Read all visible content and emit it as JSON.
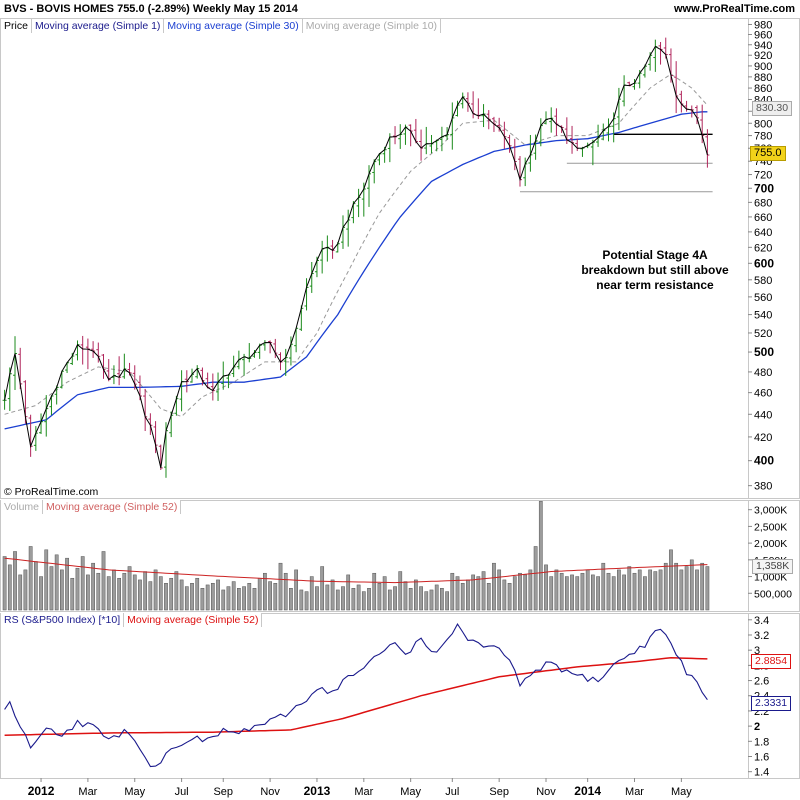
{
  "header": {
    "ticker_line": "BVS - BOVIS HOMES     755.0 (-2.89%)     Weekly  May 15 2014",
    "site": "www.ProRealTime.com"
  },
  "copyright": "© ProRealTime.com",
  "annotation": [
    "Potential Stage 4A",
    "breakdown but still above",
    "near term resistance"
  ],
  "colors": {
    "up_bar": "#1a8a1a",
    "down_bar": "#b0245a",
    "ma1": "#000000",
    "ma30": "#1b3fd1",
    "ma10": "#999999",
    "volume_bar": "#9c9c9c",
    "vol_ma": "#cc2222",
    "rs_line": "#1a1a8c",
    "rs_ma": "#dd1111",
    "last_price_badge": "#f2d21a"
  },
  "chart_data": [
    {
      "type": "ohlc",
      "panel": "price",
      "legend": [
        "Price",
        "Moving average (Simple 1)",
        "Moving average (Simple 30)",
        "Moving average (Simple 10)"
      ],
      "yticks": [
        380,
        400,
        420,
        440,
        460,
        480,
        500,
        520,
        540,
        560,
        580,
        600,
        620,
        640,
        660,
        680,
        700,
        720,
        740,
        760,
        780,
        800,
        820,
        840,
        860,
        880,
        900,
        920,
        940,
        960,
        980
      ],
      "ytick_labels": [
        "380",
        "400",
        "420",
        "440",
        "460",
        "480",
        "500",
        "520",
        "540",
        "560",
        "580",
        "600",
        "620",
        "640",
        "660",
        "680",
        "700",
        "720",
        "740",
        "760",
        "780",
        "800",
        "820",
        "840",
        "860",
        "880",
        "900",
        "920",
        "940",
        "960",
        "980"
      ],
      "yticks_bold": [
        400,
        500,
        600,
        700
      ],
      "scale": "log",
      "ylim": [
        372,
        985
      ],
      "last_price": "755.0",
      "ma10_last": "830.30",
      "close_anchors": [
        [
          0,
          455
        ],
        [
          2,
          498
        ],
        [
          5,
          410
        ],
        [
          8,
          445
        ],
        [
          11,
          480
        ],
        [
          14,
          505
        ],
        [
          17,
          503
        ],
        [
          20,
          470
        ],
        [
          23,
          482
        ],
        [
          25,
          470
        ],
        [
          27,
          440
        ],
        [
          29,
          415
        ],
        [
          30,
          395
        ],
        [
          31,
          425
        ],
        [
          34,
          470
        ],
        [
          37,
          480
        ],
        [
          40,
          460
        ],
        [
          42,
          475
        ],
        [
          45,
          490
        ],
        [
          48,
          500
        ],
        [
          51,
          510
        ],
        [
          53,
          490
        ],
        [
          55,
          505
        ],
        [
          58,
          570
        ],
        [
          61,
          620
        ],
        [
          63,
          612
        ],
        [
          66,
          660
        ],
        [
          69,
          700
        ],
        [
          71,
          740
        ],
        [
          74,
          775
        ],
        [
          77,
          790
        ],
        [
          80,
          765
        ],
        [
          83,
          770
        ],
        [
          85,
          780
        ],
        [
          87,
          835
        ],
        [
          88,
          845
        ],
        [
          90,
          820
        ],
        [
          93,
          805
        ],
        [
          96,
          780
        ],
        [
          98,
          740
        ],
        [
          99,
          715
        ],
        [
          101,
          755
        ],
        [
          104,
          810
        ],
        [
          107,
          790
        ],
        [
          110,
          755
        ],
        [
          113,
          768
        ],
        [
          116,
          790
        ],
        [
          119,
          860
        ],
        [
          122,
          880
        ],
        [
          125,
          935
        ],
        [
          127,
          920
        ],
        [
          129,
          850
        ],
        [
          131,
          825
        ],
        [
          133,
          810
        ],
        [
          135,
          755
        ]
      ],
      "ma30_anchors": [
        [
          0,
          427
        ],
        [
          8,
          435
        ],
        [
          14,
          458
        ],
        [
          20,
          465
        ],
        [
          26,
          465
        ],
        [
          34,
          466
        ],
        [
          40,
          470
        ],
        [
          46,
          470
        ],
        [
          53,
          475
        ],
        [
          58,
          495
        ],
        [
          64,
          540
        ],
        [
          70,
          600
        ],
        [
          76,
          660
        ],
        [
          82,
          710
        ],
        [
          88,
          735
        ],
        [
          94,
          755
        ],
        [
          100,
          765
        ],
        [
          106,
          772
        ],
        [
          112,
          775
        ],
        [
          118,
          785
        ],
        [
          124,
          800
        ],
        [
          130,
          815
        ],
        [
          134,
          819
        ]
      ],
      "ma10_anchors": [
        [
          0,
          440
        ],
        [
          6,
          448
        ],
        [
          12,
          470
        ],
        [
          18,
          485
        ],
        [
          24,
          480
        ],
        [
          30,
          445
        ],
        [
          34,
          438
        ],
        [
          38,
          456
        ],
        [
          44,
          470
        ],
        [
          50,
          490
        ],
        [
          56,
          490
        ],
        [
          60,
          520
        ],
        [
          66,
          590
        ],
        [
          72,
          665
        ],
        [
          78,
          725
        ],
        [
          84,
          765
        ],
        [
          88,
          800
        ],
        [
          94,
          805
        ],
        [
          100,
          765
        ],
        [
          106,
          780
        ],
        [
          112,
          780
        ],
        [
          118,
          800
        ],
        [
          124,
          860
        ],
        [
          128,
          885
        ],
        [
          132,
          860
        ],
        [
          135,
          830
        ]
      ],
      "horizontal_lines": [
        {
          "value": 782,
          "from_week": 117,
          "to_week": 136,
          "color": "#000000"
        },
        {
          "value": 737,
          "from_week": 108,
          "to_week": 136,
          "color": "#999999"
        },
        {
          "value": 695,
          "from_week": 99,
          "to_week": 136,
          "color": "#999999"
        }
      ]
    },
    {
      "type": "bar",
      "panel": "volume",
      "legend": [
        "Volume",
        "Moving average (Simple 52)"
      ],
      "yticks": [
        500000,
        1000000,
        1500000,
        2000000,
        2500000,
        3000000
      ],
      "ytick_labels": [
        "500,000",
        "1,000K",
        "1,500K",
        "2,000K",
        "2,500K",
        "3,000K"
      ],
      "ylim": [
        0,
        3200000
      ],
      "ma_last": "1,358K",
      "values": [
        1600,
        1350,
        1750,
        1050,
        1200,
        1900,
        1450,
        1000,
        1800,
        1300,
        1650,
        1200,
        1550,
        950,
        1250,
        1600,
        1050,
        1400,
        1100,
        1750,
        1000,
        1200,
        950,
        1100,
        1300,
        1050,
        900,
        1150,
        850,
        1200,
        1000,
        800,
        950,
        1150,
        900,
        700,
        800,
        950,
        650,
        750,
        800,
        900,
        600,
        700,
        850,
        650,
        700,
        800,
        650,
        950,
        1100,
        850,
        800,
        1400,
        1100,
        650,
        1200,
        600,
        550,
        1000,
        700,
        1300,
        750,
        900,
        600,
        700,
        1050,
        650,
        750,
        550,
        650,
        1100,
        800,
        1000,
        600,
        700,
        1150,
        850,
        650,
        900,
        700,
        550,
        600,
        750,
        650,
        550,
        1100,
        1000,
        800,
        900,
        1050,
        1000,
        1150,
        800,
        1400,
        1200,
        900,
        800,
        1000,
        1100,
        1050,
        1200,
        1900,
        3250,
        1350,
        1000,
        1200,
        1100,
        1000,
        1050,
        1000,
        1100,
        1200,
        1050,
        1000,
        1400,
        1100,
        1000,
        1200,
        1050,
        1300,
        1100,
        1200,
        1000,
        1200,
        1150,
        1200,
        1400,
        1800,
        1400,
        1200,
        1300,
        1500,
        1200,
        1400,
        1300
      ],
      "values_unit": "thousands",
      "ma_anchors": [
        [
          0,
          1550
        ],
        [
          20,
          1200
        ],
        [
          40,
          1020
        ],
        [
          60,
          860
        ],
        [
          75,
          820
        ],
        [
          90,
          900
        ],
        [
          105,
          1150
        ],
        [
          120,
          1260
        ],
        [
          135,
          1358
        ]
      ]
    },
    {
      "type": "line",
      "panel": "relative_strength",
      "legend": [
        "RS (S&P500 Index) [*10]",
        "Moving average (Simple 52)"
      ],
      "yticks": [
        1.4,
        1.6,
        1.8,
        2,
        2.2,
        2.4,
        2.6,
        2.8,
        3,
        3.2,
        3.4
      ],
      "ytick_labels": [
        "1.4",
        "1.6",
        "1.8",
        "2",
        "2.2",
        "2.4",
        "2.6",
        "2.8",
        "3",
        "3.2",
        "3.4"
      ],
      "ylim": [
        1.33,
        3.45
      ],
      "rs_last": "2.3331",
      "ma_last": "2.8854",
      "rs_anchors": [
        [
          0,
          2.2
        ],
        [
          1,
          2.35
        ],
        [
          2,
          2.15
        ],
        [
          4,
          1.85
        ],
        [
          5,
          1.75
        ],
        [
          8,
          1.95
        ],
        [
          11,
          1.9
        ],
        [
          14,
          2.05
        ],
        [
          17,
          2.0
        ],
        [
          20,
          1.8
        ],
        [
          23,
          1.95
        ],
        [
          25,
          1.85
        ],
        [
          27,
          1.6
        ],
        [
          28,
          1.45
        ],
        [
          30,
          1.55
        ],
        [
          33,
          1.75
        ],
        [
          36,
          1.85
        ],
        [
          39,
          1.8
        ],
        [
          42,
          1.95
        ],
        [
          45,
          1.9
        ],
        [
          48,
          2.0
        ],
        [
          51,
          2.05
        ],
        [
          54,
          2.15
        ],
        [
          57,
          2.3
        ],
        [
          60,
          2.5
        ],
        [
          63,
          2.45
        ],
        [
          66,
          2.65
        ],
        [
          69,
          2.75
        ],
        [
          72,
          2.95
        ],
        [
          75,
          3.1
        ],
        [
          77,
          2.95
        ],
        [
          80,
          3.15
        ],
        [
          83,
          2.95
        ],
        [
          85,
          3.1
        ],
        [
          87,
          3.35
        ],
        [
          89,
          3.15
        ],
        [
          92,
          3.05
        ],
        [
          95,
          3.0
        ],
        [
          98,
          2.75
        ],
        [
          99,
          2.55
        ],
        [
          102,
          2.7
        ],
        [
          105,
          2.85
        ],
        [
          108,
          2.7
        ],
        [
          111,
          2.65
        ],
        [
          114,
          2.6
        ],
        [
          117,
          2.8
        ],
        [
          120,
          2.95
        ],
        [
          123,
          3.05
        ],
        [
          125,
          3.3
        ],
        [
          127,
          3.2
        ],
        [
          129,
          2.95
        ],
        [
          131,
          2.7
        ],
        [
          133,
          2.6
        ],
        [
          135,
          2.3331
        ]
      ],
      "ma_anchors": [
        [
          0,
          1.88
        ],
        [
          20,
          1.91
        ],
        [
          40,
          1.92
        ],
        [
          55,
          1.95
        ],
        [
          65,
          2.1
        ],
        [
          80,
          2.4
        ],
        [
          95,
          2.65
        ],
        [
          110,
          2.78
        ],
        [
          120,
          2.84
        ],
        [
          128,
          2.9
        ],
        [
          135,
          2.8854
        ]
      ]
    }
  ],
  "x_axis": {
    "labels": [
      "2012",
      "Mar",
      "May",
      "Jul",
      "Sep",
      "Nov",
      "2013",
      "Mar",
      "May",
      "Jul",
      "Sep",
      "Nov",
      "2014",
      "Mar",
      "May"
    ],
    "bold": [
      true,
      false,
      false,
      false,
      false,
      false,
      true,
      false,
      false,
      false,
      false,
      false,
      true,
      false,
      false
    ],
    "weeks": [
      7,
      16,
      25,
      34,
      42,
      51,
      60,
      69,
      78,
      86,
      95,
      104,
      112,
      121,
      130
    ],
    "total_weeks": 136
  }
}
